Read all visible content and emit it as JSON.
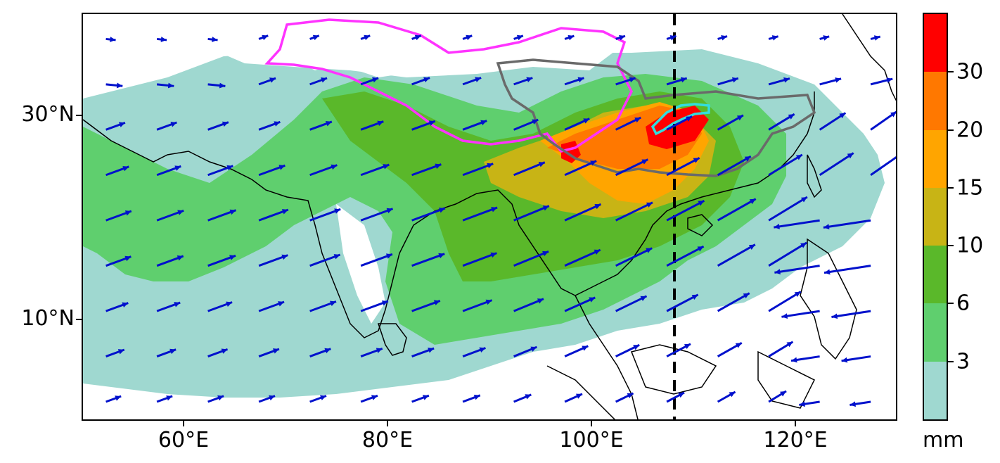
{
  "axes": {
    "y_ticks": [
      {
        "label": "30°N",
        "lat": 30
      },
      {
        "label": "10°N",
        "lat": 10
      }
    ],
    "x_ticks": [
      {
        "label": "60°E",
        "lon": 60
      },
      {
        "label": "80°E",
        "lon": 80
      },
      {
        "label": "100°E",
        "lon": 100
      },
      {
        "label": "120°E",
        "lon": 120
      }
    ],
    "lon_range": [
      50,
      130
    ],
    "lat_range": [
      0,
      40
    ]
  },
  "colorbar": {
    "unit": "mm",
    "levels": [
      "3",
      "6",
      "10",
      "15",
      "20",
      "30"
    ],
    "colors": [
      "#9fd8d0",
      "#5fcf6e",
      "#5ab82a",
      "#c8b415",
      "#ffa500",
      "#ff7800",
      "#ff0000"
    ]
  },
  "overlays": {
    "meridian_line_lon": 108,
    "meridian_line_style": "dashed black",
    "outline_colors": {
      "tibetan_plateau": "#ff33ff",
      "basin_region": "#666666",
      "highlight_region": "#33dddd"
    },
    "vector_color": "#0011cc"
  }
}
